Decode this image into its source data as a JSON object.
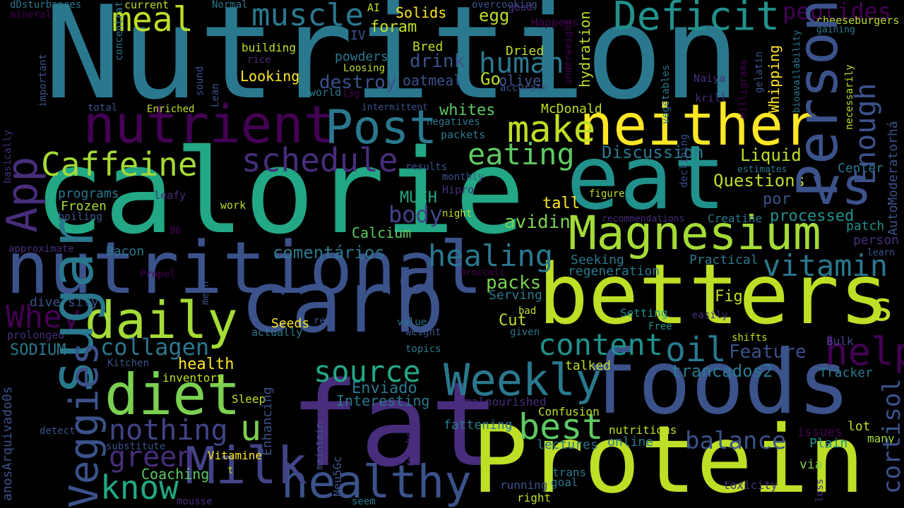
{
  "words": [
    {
      "text": "Nutrition",
      "color": "#2a788e"
    },
    {
      "text": "calorie",
      "color": "#22a884"
    },
    {
      "text": "carb",
      "color": "#3b528b"
    },
    {
      "text": "fat",
      "color": "#472d7b"
    },
    {
      "text": "Protein",
      "color": "#bddf26"
    },
    {
      "text": "foods",
      "color": "#3b528b"
    },
    {
      "text": "betters",
      "color": "#bddf26"
    },
    {
      "text": "eat",
      "color": "#21918c"
    },
    {
      "text": "nutritional",
      "color": "#3b528b"
    },
    {
      "text": "neither",
      "color": "#fde725"
    },
    {
      "text": "Magnesium",
      "color": "#a5db36"
    },
    {
      "text": "nutrient",
      "color": "#440154"
    },
    {
      "text": "diet",
      "color": "#7ad151"
    },
    {
      "text": "healthy",
      "color": "#3b528b"
    },
    {
      "text": "Milk",
      "color": "#414487"
    },
    {
      "text": "sugar",
      "color": "#2a788e"
    },
    {
      "text": "Personal",
      "color": "#3b528b"
    },
    {
      "text": "Post",
      "color": "#2a788e"
    },
    {
      "text": "daily",
      "color": "#a5db36"
    },
    {
      "text": "vs",
      "color": "#3b528b"
    },
    {
      "text": "Weekly",
      "color": "#2a788e"
    },
    {
      "text": "App",
      "color": "#472d7b"
    },
    {
      "text": "Deficit",
      "color": "#21918c"
    },
    {
      "text": "make",
      "color": "#bddf26"
    },
    {
      "text": "eating",
      "color": "#5ec962"
    },
    {
      "text": "schedule",
      "color": "#472d7b"
    },
    {
      "text": "Veggies",
      "color": "#3b528b"
    },
    {
      "text": "Enough",
      "color": "#3b528b"
    },
    {
      "text": "muscle",
      "color": "#2a788e"
    },
    {
      "text": "meal",
      "color": "#bddf26"
    },
    {
      "text": "Caffeine",
      "color": "#a5db36"
    },
    {
      "text": "content",
      "color": "#21918c"
    },
    {
      "text": "oil",
      "color": "#2a788e"
    },
    {
      "text": "vitamin",
      "color": "#2a788e"
    },
    {
      "text": "help",
      "color": "#440154"
    },
    {
      "text": "best",
      "color": "#5ec962"
    },
    {
      "text": "source",
      "color": "#22a884"
    },
    {
      "text": "know",
      "color": "#22a884"
    },
    {
      "text": "collagen",
      "color": "#2a788e"
    },
    {
      "text": "green",
      "color": "#472d7b"
    },
    {
      "text": "nothing",
      "color": "#414487"
    },
    {
      "text": "healing",
      "color": "#2a788e"
    },
    {
      "text": "human",
      "color": "#2a788e"
    },
    {
      "text": "Whey",
      "color": "#440154"
    },
    {
      "text": "cortisol",
      "color": "#3b528b"
    },
    {
      "text": "s",
      "color": "#bddf26"
    },
    {
      "text": "u",
      "color": "#7ad151"
    },
    {
      "text": "balance",
      "color": "#3b528b"
    },
    {
      "text": "peptides",
      "color": "#440154"
    },
    {
      "text": "body",
      "color": "#414487"
    },
    {
      "text": "avidin",
      "color": "#7ad151"
    },
    {
      "text": "trancados2",
      "color": "#2a788e"
    },
    {
      "text": "Feature",
      "color": "#3b528b"
    },
    {
      "text": "health",
      "color": "#fde725"
    },
    {
      "text": "Discussion",
      "color": "#2a788e"
    },
    {
      "text": "Questions",
      "color": "#bddf26"
    },
    {
      "text": "Liquid",
      "color": "#bddf26"
    },
    {
      "text": "Enviado",
      "color": "#2a788e"
    },
    {
      "text": "comentários",
      "color": "#2a788e"
    },
    {
      "text": "Interesting",
      "color": "#2a788e"
    },
    {
      "text": "whites",
      "color": "#5ec962"
    },
    {
      "text": "drink",
      "color": "#3b528b"
    },
    {
      "text": "destroy",
      "color": "#3b528b"
    },
    {
      "text": "Calcium",
      "color": "#5ec962"
    },
    {
      "text": "packs",
      "color": "#7ad151"
    },
    {
      "text": "Coaching",
      "color": "#5ec962"
    },
    {
      "text": "Enhancing",
      "color": "#3b528b"
    },
    {
      "text": "Whipping",
      "color": "#fde725"
    },
    {
      "text": "hydration",
      "color": "#bddf26"
    },
    {
      "text": "AutoModeratorhá",
      "color": "#3b528b"
    },
    {
      "text": "anosArquivado0s",
      "color": "#3b528b"
    },
    {
      "text": "SODIUM",
      "color": "#2a788e"
    },
    {
      "text": "diversity",
      "color": "#3b528b"
    },
    {
      "text": "regeneration",
      "color": "#2a788e"
    },
    {
      "text": "tall",
      "color": "#fde725"
    },
    {
      "text": "processed",
      "color": "#21918c"
    },
    {
      "text": "MUCH",
      "color": "#22a884"
    },
    {
      "text": "por",
      "color": "#3b528b"
    },
    {
      "text": "Cut",
      "color": "#bddf26"
    },
    {
      "text": "McDonald",
      "color": "#bddf26"
    },
    {
      "text": "Go",
      "color": "#bddf26"
    },
    {
      "text": "olive",
      "color": "#3b528b"
    },
    {
      "text": "egg",
      "color": "#bddf26"
    },
    {
      "text": "foram",
      "color": "#bddf26"
    },
    {
      "text": "Solids",
      "color": "#fde725"
    },
    {
      "text": "powders",
      "color": "#2a788e"
    },
    {
      "text": "oatmeal",
      "color": "#3b528b"
    },
    {
      "text": "Looking",
      "color": "#fde725"
    },
    {
      "text": "Bred",
      "color": "#bddf26"
    },
    {
      "text": "Dried",
      "color": "#bddf26"
    },
    {
      "text": "building",
      "color": "#bddf26"
    },
    {
      "text": "Frozen",
      "color": "#a5db36"
    },
    {
      "text": "programs",
      "color": "#2a788e"
    },
    {
      "text": "Bacon",
      "color": "#2a788e"
    },
    {
      "text": "Seeds",
      "color": "#fde725"
    },
    {
      "text": "Serving",
      "color": "#2a788e"
    },
    {
      "text": "Seeking",
      "color": "#2a788e"
    },
    {
      "text": "Practical",
      "color": "#2a788e"
    },
    {
      "text": "Figs",
      "color": "#bddf26"
    },
    {
      "text": "Setting",
      "color": "#21918c"
    },
    {
      "text": "Tracker",
      "color": "#2a788e"
    },
    {
      "text": "Bulk",
      "color": "#414487"
    },
    {
      "text": "Plain",
      "color": "#21918c"
    },
    {
      "text": "lot",
      "color": "#bddf26"
    },
    {
      "text": "patch",
      "color": "#21918c"
    },
    {
      "text": "person",
      "color": "#472d7b"
    },
    {
      "text": "Creatine",
      "color": "#2a788e"
    },
    {
      "text": "Center",
      "color": "#2a788e"
    },
    {
      "text": "Sleep",
      "color": "#bddf26"
    },
    {
      "text": "inventory",
      "color": "#bddf26"
    },
    {
      "text": "Confusion",
      "color": "#bddf26"
    },
    {
      "text": "fattening",
      "color": "#2a788e"
    },
    {
      "text": "lectures",
      "color": "#2a788e"
    },
    {
      "text": "online",
      "color": "#2a788e"
    },
    {
      "text": "nutritious",
      "color": "#bddf26"
    },
    {
      "text": "talked",
      "color": "#bddf26"
    },
    {
      "text": "issues",
      "color": "#440154"
    },
    {
      "text": "many",
      "color": "#a5db36"
    },
    {
      "text": "Vitamine",
      "color": "#fde725"
    },
    {
      "text": "running",
      "color": "#3b528b"
    },
    {
      "text": "trans",
      "color": "#2a788e"
    },
    {
      "text": "goal",
      "color": "#2a788e"
    },
    {
      "text": "right",
      "color": "#bddf26"
    },
    {
      "text": "toxicity",
      "color": "#472d7b"
    },
    {
      "text": "via",
      "color": "#7ad151"
    },
    {
      "text": "Neu5Gc",
      "color": "#3b528b"
    },
    {
      "text": "malnourished",
      "color": "#472d7b"
    },
    {
      "text": "current",
      "color": "#bddf26"
    },
    {
      "text": "Normal",
      "color": "#2a788e"
    },
    {
      "text": "AI",
      "color": "#bddf26"
    },
    {
      "text": "mineral",
      "color": "#440154"
    },
    {
      "text": "dDsturbances",
      "color": "#2a788e"
    },
    {
      "text": "Happens",
      "color": "#440154"
    },
    {
      "text": "cheeseburgers",
      "color": "#bddf26"
    },
    {
      "text": "gaining",
      "color": "#2a788e"
    },
    {
      "text": "Naiya",
      "color": "#472d7b"
    },
    {
      "text": "krill",
      "color": "#472d7b"
    },
    {
      "text": "milligrams",
      "color": "#440154"
    },
    {
      "text": "gelatin",
      "color": "#3b528b"
    },
    {
      "text": "bioavailability",
      "color": "#2a788e"
    },
    {
      "text": "necessarily",
      "color": "#bddf26"
    },
    {
      "text": "Loosing",
      "color": "#bddf26"
    },
    {
      "text": "IV",
      "color": "#3b528b"
    },
    {
      "text": "world",
      "color": "#2a788e"
    },
    {
      "text": "13g",
      "color": "#440154"
    },
    {
      "text": "intermittent",
      "color": "#3b528b"
    },
    {
      "text": "negatives",
      "color": "#2a788e"
    },
    {
      "text": "packets",
      "color": "#2a788e"
    },
    {
      "text": "accurate",
      "color": "#3b528b"
    },
    {
      "text": "rice",
      "color": "#472d7b"
    },
    {
      "text": "total",
      "color": "#3b528b"
    },
    {
      "text": "Enriched",
      "color": "#bddf26"
    },
    {
      "text": "results",
      "color": "#3b528b"
    },
    {
      "text": "monthly",
      "color": "#3b528b"
    },
    {
      "text": "estimates",
      "color": "#2a788e"
    },
    {
      "text": "Hipro",
      "color": "#472d7b"
    },
    {
      "text": "figure",
      "color": "#bddf26"
    },
    {
      "text": "leafy",
      "color": "#472d7b"
    },
    {
      "text": "boiling",
      "color": "#3b528b"
    },
    {
      "text": "work",
      "color": "#bddf26"
    },
    {
      "text": "B6",
      "color": "#440154"
    },
    {
      "text": "night",
      "color": "#bddf26"
    },
    {
      "text": "recommendations",
      "color": "#472d7b"
    },
    {
      "text": "approximate",
      "color": "#472d7b"
    },
    {
      "text": "Propel",
      "color": "#440154"
    },
    {
      "text": "broccoli",
      "color": "#440154"
    },
    {
      "text": "mean",
      "color": "#3b528b"
    },
    {
      "text": "bad",
      "color": "#bddf26"
    },
    {
      "text": "given",
      "color": "#2a788e"
    },
    {
      "text": "red",
      "color": "#3b528b"
    },
    {
      "text": "value",
      "color": "#2a788e"
    },
    {
      "text": "weight",
      "color": "#3b528b"
    },
    {
      "text": "topics",
      "color": "#2a788e"
    },
    {
      "text": "actually",
      "color": "#2a788e"
    },
    {
      "text": "prolonged",
      "color": "#472d7b"
    },
    {
      "text": "Kitchen",
      "color": "#3b528b"
    },
    {
      "text": "Free",
      "color": "#21918c"
    },
    {
      "text": "easily",
      "color": "#472d7b"
    },
    {
      "text": "shifts",
      "color": "#bddf26"
    },
    {
      "text": "learn",
      "color": "#3b528b"
    },
    {
      "text": "detect",
      "color": "#3b528b"
    },
    {
      "text": "substitute",
      "color": "#3b528b"
    },
    {
      "text": "t",
      "color": "#bddf26"
    },
    {
      "text": "mousse",
      "color": "#472d7b"
    },
    {
      "text": "seem",
      "color": "#2a788e"
    },
    {
      "text": "reached",
      "color": "#472d7b"
    },
    {
      "text": "maintain",
      "color": "#3b528b"
    },
    {
      "text": "loss",
      "color": "#472d7b"
    },
    {
      "text": "fast",
      "color": "#2a788e"
    },
    {
      "text": "mass",
      "color": "#bddf26"
    },
    {
      "text": "overcooking",
      "color": "#3b528b"
    },
    {
      "text": "good",
      "color": "#472d7b"
    },
    {
      "text": "underweight",
      "color": "#440154"
    },
    {
      "text": "concentration",
      "color": "#2a788e"
    },
    {
      "text": "important",
      "color": "#3b528b"
    },
    {
      "text": "basically",
      "color": "#472d7b"
    },
    {
      "text": "sound",
      "color": "#3b528b"
    },
    {
      "text": "Lean",
      "color": "#3b528b"
    },
    {
      "text": "vegetables",
      "color": "#2a788e"
    },
    {
      "text": "declining",
      "color": "#3b528b"
    }
  ]
}
